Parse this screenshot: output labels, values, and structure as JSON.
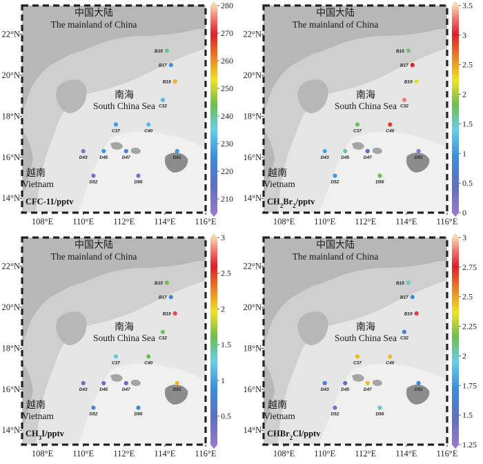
{
  "figure": {
    "x_ticks": [
      "108°E",
      "110°E",
      "112°E",
      "114°E",
      "116°E"
    ],
    "y_ticks": [
      "14°N",
      "16°N",
      "18°N",
      "20°N",
      "22°N"
    ],
    "labels": {
      "china_cn": "中国大陆",
      "china_en": "The mainland of China",
      "sea_cn": "南海",
      "sea_en": "South China Sea",
      "vietnam_cn": "越南",
      "vietnam_en": "Vietnam"
    },
    "station_names": [
      "B15",
      "B17",
      "B19",
      "C32",
      "C37",
      "C40",
      "D43",
      "D45",
      "D47",
      "D51",
      "D52",
      "D56"
    ]
  },
  "chart_data": [
    {
      "type": "map",
      "title": "CFC-11/pptv",
      "title_parts": [
        {
          "t": "CFC-11/pptv",
          "sub": false
        }
      ],
      "colorbar": {
        "min": 205,
        "max": 280,
        "ticks": [
          "210",
          "220",
          "230",
          "240",
          "250",
          "260",
          "270",
          "280"
        ],
        "tick_values": [
          210,
          220,
          230,
          240,
          250,
          260,
          270,
          280
        ]
      },
      "values": {
        "B15": 240,
        "B17": 226,
        "B19": 257,
        "C32": 232,
        "C37": 227,
        "C40": 232,
        "D43": 209,
        "D45": 226,
        "D47": 223,
        "D51": 227,
        "D52": 211,
        "D56": 210
      }
    },
    {
      "type": "map",
      "title": "CH2Br2/pptv",
      "title_parts": [
        {
          "t": "CH",
          "sub": false
        },
        {
          "t": "2",
          "sub": true
        },
        {
          "t": "Br",
          "sub": false
        },
        {
          "t": "2",
          "sub": true
        },
        {
          "t": "/pptv",
          "sub": false
        }
      ],
      "colorbar": {
        "min": 0,
        "max": 3.5,
        "ticks": [
          "0",
          "0.5",
          "1",
          "1.5",
          "2",
          "2.5",
          "3",
          "3.5"
        ],
        "tick_values": [
          0,
          0.5,
          1,
          1.5,
          2,
          2.5,
          3,
          3.5
        ]
      },
      "values": {
        "B15": 1.7,
        "B17": 3.0,
        "B19": 2.2,
        "C32": 3.3,
        "C37": 1.8,
        "C40": 2.9,
        "D43": 1.1,
        "D45": 1.6,
        "D47": 0.5,
        "D51": 0.1,
        "D52": 1.0,
        "D56": 1.8
      }
    },
    {
      "type": "map",
      "title": "CH3I/pptv",
      "title_parts": [
        {
          "t": "CH",
          "sub": false
        },
        {
          "t": "3",
          "sub": true
        },
        {
          "t": "I/pptv",
          "sub": false
        }
      ],
      "colorbar": {
        "min": 0.1,
        "max": 3,
        "ticks": [
          "0.5",
          "1",
          "1.5",
          "2",
          "2.5",
          "3"
        ],
        "tick_values": [
          0.5,
          1,
          1.5,
          2,
          2.5,
          3
        ]
      },
      "values": {
        "B15": 1.6,
        "B17": 0.8,
        "B19": 2.7,
        "C32": 1.6,
        "C37": 1.3,
        "C40": 1.6,
        "D43": 0.4,
        "D45": 0.4,
        "D47": 0.5,
        "D51": 2.1,
        "D52": 0.8,
        "D56": 0.8
      }
    },
    {
      "type": "map",
      "title": "CHBr2Cl/pptv",
      "title_parts": [
        {
          "t": "CHBr",
          "sub": false
        },
        {
          "t": "2",
          "sub": true
        },
        {
          "t": "Cl/pptv",
          "sub": false
        }
      ],
      "colorbar": {
        "min": 1.25,
        "max": 3,
        "ticks": [
          "1.25",
          "1.5",
          "1.75",
          "2",
          "2.25",
          "2.5",
          "2.75",
          "3"
        ],
        "tick_values": [
          1.25,
          1.5,
          1.75,
          2,
          2.25,
          2.5,
          2.75,
          3
        ]
      },
      "values": {
        "B15": 2.0,
        "B17": 1.7,
        "B19": 2.8,
        "C32": 1.6,
        "C37": 2.45,
        "C40": 2.45,
        "D43": 1.6,
        "D45": 1.5,
        "D47": 2.45,
        "D51": 1.7,
        "D52": 1.4,
        "D56": 2.0
      }
    }
  ]
}
